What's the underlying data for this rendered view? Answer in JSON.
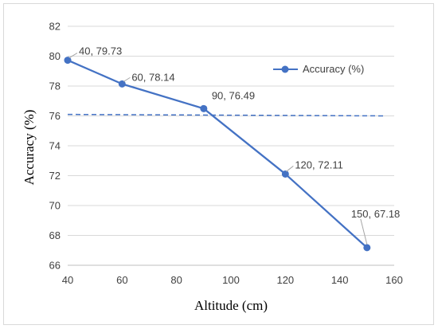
{
  "chart_data": {
    "type": "line",
    "title": "",
    "xlabel": "Altitude (cm)",
    "ylabel": "Accuracy (%)",
    "xlim": [
      40,
      160
    ],
    "ylim": [
      66,
      82
    ],
    "x_ticks": [
      "40",
      "60",
      "80",
      "100",
      "120",
      "140",
      "160"
    ],
    "y_ticks": [
      "66",
      "68",
      "70",
      "72",
      "74",
      "76",
      "78",
      "80",
      "82"
    ],
    "grid": "horizontal",
    "legend_position": "top-right",
    "series": [
      {
        "name": "Accuracy (%)",
        "color": "#4472C4",
        "marker": "circle",
        "x": [
          40,
          60,
          90,
          120,
          150
        ],
        "y": [
          79.73,
          78.14,
          76.49,
          72.11,
          67.18
        ],
        "labels": [
          "40, 79.73",
          "60, 78.14",
          "90, 76.49",
          "120, 72.11",
          "150, 67.18"
        ]
      }
    ],
    "trendline": {
      "style": "dashed",
      "color": "#4472C4",
      "x": [
        40,
        157
      ],
      "y": [
        76.1,
        76.0
      ]
    }
  }
}
